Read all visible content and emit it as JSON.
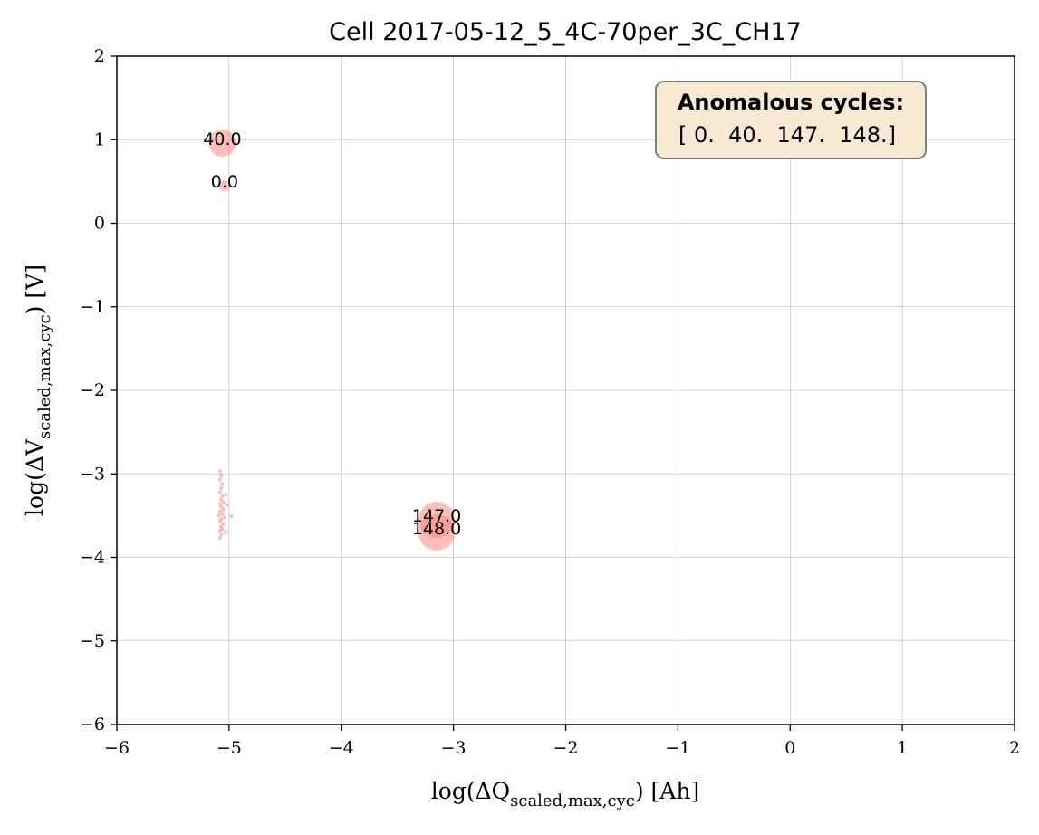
{
  "chart_data": {
    "type": "scatter",
    "title": "Cell 2017-05-12_5_4C-70per_3C_CH17",
    "xlabel": {
      "pre": "log(ΔQ",
      "sub": "scaled,max,cyc",
      "post": ") [Ah]"
    },
    "ylabel": {
      "pre": "log(ΔV",
      "sub": "scaled,max,cyc",
      "post": ") [V]"
    },
    "xlim": [
      -6,
      2
    ],
    "ylim": [
      -6,
      2
    ],
    "xticks": [
      -6,
      -5,
      -4,
      -3,
      -2,
      -1,
      0,
      1,
      2
    ],
    "yticks": [
      -6,
      -5,
      -4,
      -3,
      -2,
      -1,
      0,
      1,
      2
    ],
    "grid": true,
    "marker_color": "#fa8072",
    "points": [
      {
        "x": -5.06,
        "y": 0.96,
        "size": 15,
        "label": "40.0"
      },
      {
        "x": -5.04,
        "y": 0.45,
        "size": 6,
        "label": "0.0"
      },
      {
        "x": -3.15,
        "y": -3.55,
        "size": 20,
        "label": "147.0"
      },
      {
        "x": -3.15,
        "y": -3.7,
        "size": 20,
        "label": "148.0"
      },
      {
        "x": -5.08,
        "y": -2.97,
        "size": 2
      },
      {
        "x": -5.07,
        "y": -3.02,
        "size": 2
      },
      {
        "x": -5.08,
        "y": -3.07,
        "size": 2
      },
      {
        "x": -5.06,
        "y": -3.12,
        "size": 2
      },
      {
        "x": -5.07,
        "y": -3.17,
        "size": 2
      },
      {
        "x": -5.08,
        "y": -3.22,
        "size": 2
      },
      {
        "x": -5.06,
        "y": -3.27,
        "size": 2
      },
      {
        "x": -5.03,
        "y": -3.25,
        "size": 2
      },
      {
        "x": -5.07,
        "y": -3.31,
        "size": 2
      },
      {
        "x": -5.05,
        "y": -3.34,
        "size": 2
      },
      {
        "x": -5.08,
        "y": -3.36,
        "size": 2
      },
      {
        "x": -5.02,
        "y": -3.37,
        "size": 2
      },
      {
        "x": -5.07,
        "y": -3.4,
        "size": 2
      },
      {
        "x": -5.05,
        "y": -3.43,
        "size": 2
      },
      {
        "x": -5.08,
        "y": -3.45,
        "size": 2
      },
      {
        "x": -5.06,
        "y": -3.48,
        "size": 2
      },
      {
        "x": -5.09,
        "y": -3.5,
        "size": 2
      },
      {
        "x": -4.98,
        "y": -3.51,
        "size": 2
      },
      {
        "x": -5.04,
        "y": -3.52,
        "size": 2
      },
      {
        "x": -5.07,
        "y": -3.54,
        "size": 2
      },
      {
        "x": -5.08,
        "y": -3.57,
        "size": 2
      },
      {
        "x": -5.05,
        "y": -3.6,
        "size": 2
      },
      {
        "x": -5.07,
        "y": -3.63,
        "size": 2
      },
      {
        "x": -5.06,
        "y": -3.66,
        "size": 2
      },
      {
        "x": -5.08,
        "y": -3.68,
        "size": 2
      },
      {
        "x": -5.03,
        "y": -3.7,
        "size": 2
      },
      {
        "x": -5.07,
        "y": -3.73,
        "size": 2
      },
      {
        "x": -5.08,
        "y": -3.77,
        "size": 2
      }
    ],
    "annotation": {
      "title": "Anomalous cycles:",
      "text": "[ 0.  40.  147.  148.]",
      "position": "top-right",
      "background": "#f8ead2",
      "border": "#7f7f7f"
    }
  }
}
